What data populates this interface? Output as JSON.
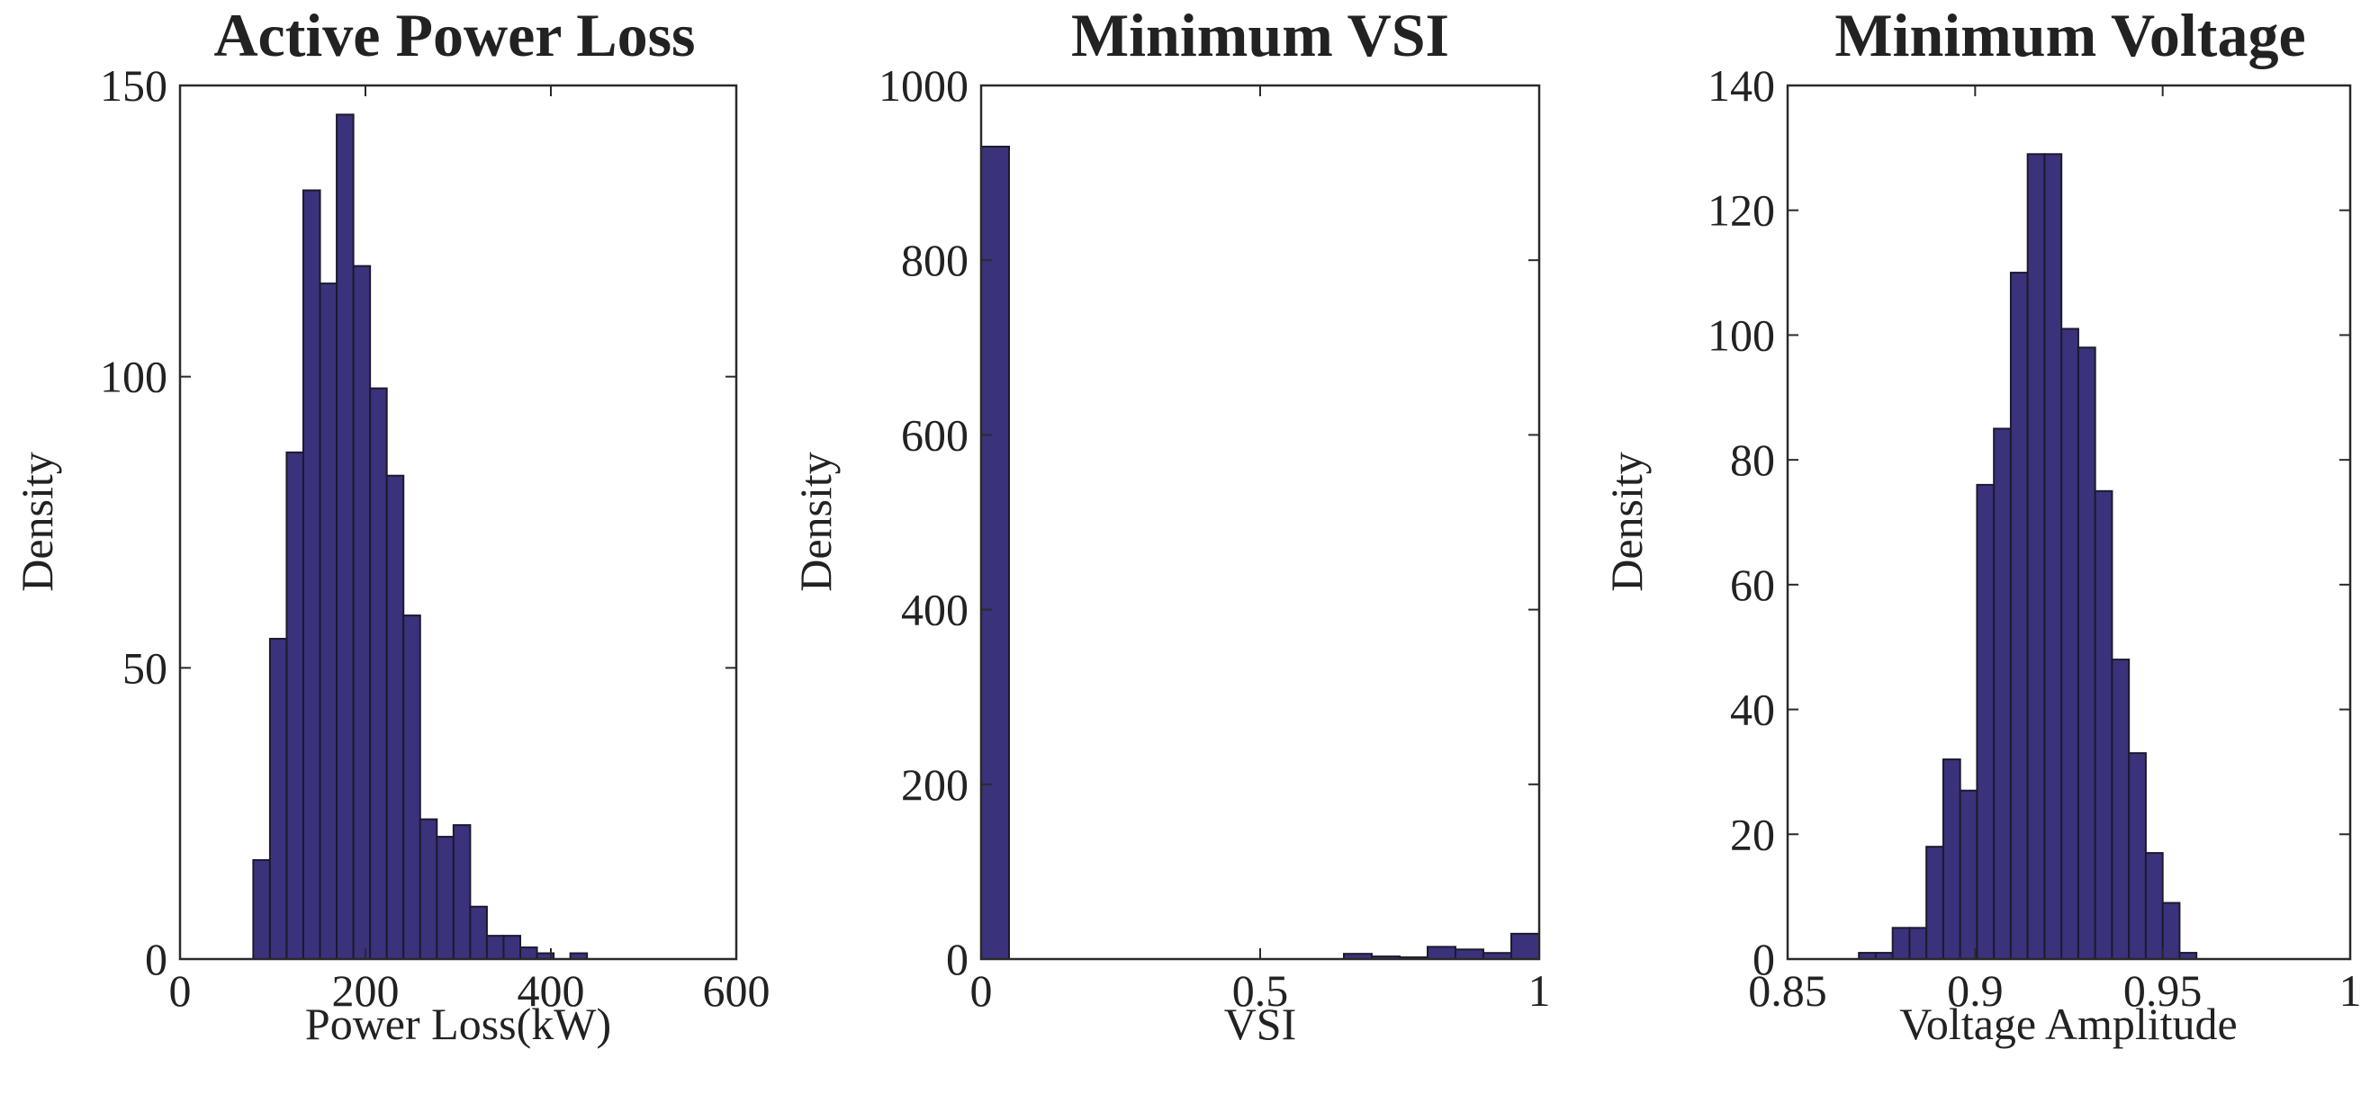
{
  "colors": {
    "bar_fill": "#3a327b",
    "bar_edge": "#1c1a2e",
    "axis": "#2a2a2a",
    "background": "#ffffff"
  },
  "chart_data": [
    {
      "type": "bar",
      "title": "Active Power Loss",
      "xlabel": "Power Loss(kW)",
      "ylabel": "Density",
      "xlim": [
        0,
        600
      ],
      "ylim": [
        0,
        150
      ],
      "xticks": [
        0,
        200,
        400,
        600
      ],
      "yticks": [
        0,
        50,
        100,
        150
      ],
      "xtick_labels": [
        "0",
        "200",
        "400",
        "600"
      ],
      "ytick_labels": [
        "0",
        "50",
        "100",
        "150"
      ],
      "bin_edges": [
        79,
        97,
        115,
        133,
        151,
        169,
        187,
        205,
        223,
        241,
        259,
        277,
        295,
        313,
        331,
        349,
        367,
        385,
        403,
        421,
        439,
        457
      ],
      "values": [
        17,
        55,
        87,
        132,
        116,
        145,
        119,
        98,
        83,
        59,
        24,
        21,
        23,
        9,
        4,
        4,
        2,
        1,
        0,
        1,
        0
      ],
      "grid": false
    },
    {
      "type": "bar",
      "title": "Minimum VSI",
      "xlabel": "VSI",
      "ylabel": "Density",
      "xlim": [
        0,
        1
      ],
      "ylim": [
        0,
        1000
      ],
      "xticks": [
        0,
        0.5,
        1
      ],
      "yticks": [
        0,
        200,
        400,
        600,
        800,
        1000
      ],
      "xtick_labels": [
        "0",
        "0.5",
        "1"
      ],
      "ytick_labels": [
        "0",
        "200",
        "400",
        "600",
        "800",
        "1000"
      ],
      "bin_edges": [
        0,
        0.05,
        0.1,
        0.15,
        0.2,
        0.25,
        0.3,
        0.35,
        0.4,
        0.45,
        0.5,
        0.55,
        0.6,
        0.65,
        0.7,
        0.75,
        0.8,
        0.85,
        0.9,
        0.95,
        1.0
      ],
      "values": [
        930,
        0,
        0,
        0,
        0,
        0,
        0,
        0,
        0,
        0,
        0,
        0,
        0,
        6,
        3,
        2,
        14,
        11,
        7,
        29
      ],
      "grid": false
    },
    {
      "type": "bar",
      "title": "Minimum Voltage",
      "xlabel": "Voltage Amplitude",
      "ylabel": "Density",
      "xlim": [
        0.85,
        1
      ],
      "ylim": [
        0,
        140
      ],
      "xticks": [
        0.85,
        0.9,
        0.95,
        1
      ],
      "yticks": [
        0,
        20,
        40,
        60,
        80,
        100,
        120,
        140
      ],
      "xtick_labels": [
        "0.85",
        "0.9",
        "0.95",
        "1"
      ],
      "ytick_labels": [
        "0",
        "20",
        "40",
        "60",
        "80",
        "100",
        "120",
        "140"
      ],
      "bin_edges": [
        0.869,
        0.8735,
        0.878,
        0.8825,
        0.887,
        0.8915,
        0.896,
        0.9005,
        0.905,
        0.9095,
        0.914,
        0.9185,
        0.923,
        0.9275,
        0.932,
        0.9365,
        0.941,
        0.9455,
        0.95,
        0.9545,
        0.959,
        0.9635
      ],
      "values": [
        1,
        1,
        5,
        5,
        18,
        32,
        27,
        76,
        85,
        110,
        129,
        129,
        101,
        98,
        75,
        48,
        33,
        17,
        9,
        1,
        0
      ],
      "grid": false
    }
  ]
}
